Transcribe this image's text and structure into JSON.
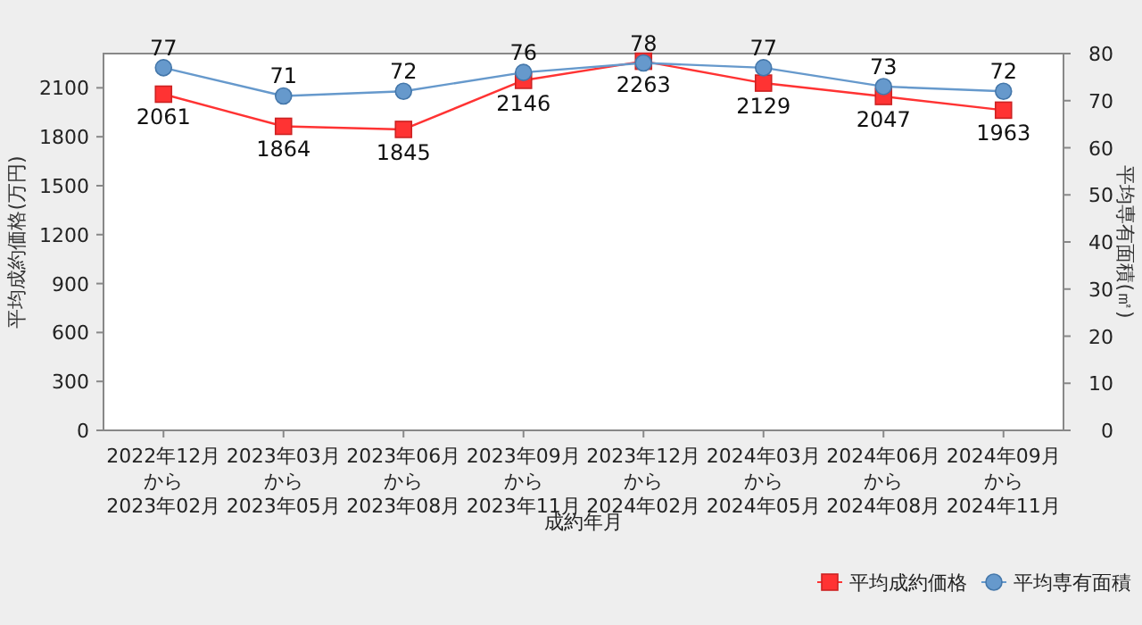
{
  "chart_data": {
    "type": "line",
    "xlabel": "成約年月",
    "ylabel": "平均成約価格(万円)",
    "y2label": "平均専有面積(㎡)",
    "categories": [
      "2022年12月から2023年02月",
      "2023年03月から2023年05月",
      "2023年06月から2023年08月",
      "2023年09月から2023年11月",
      "2023年12月から2024年02月",
      "2024年03月から2024年05月",
      "2024年06月から2024年08月",
      "2024年09月から2024年11月"
    ],
    "series": [
      {
        "name": "平均成約価格",
        "color": "#ff3333",
        "marker": "square",
        "values": [
          2061,
          1864,
          1845,
          2146,
          2263,
          2129,
          2047,
          1963
        ]
      },
      {
        "name": "平均専有面積",
        "color": "#6699cc",
        "marker": "circle",
        "axis": "y2",
        "values": [
          77,
          71,
          72,
          76,
          78,
          77,
          73,
          72
        ]
      }
    ],
    "ylim": [
      0,
      2310
    ],
    "yticks": [
      0,
      300,
      600,
      900,
      1200,
      1500,
      1800,
      2100
    ],
    "y2lim": [
      0,
      80
    ],
    "y2ticks": [
      0,
      10,
      20,
      30,
      40,
      50,
      60,
      70,
      80
    ],
    "data_labels": true,
    "grid": false,
    "legend": "bottom right"
  }
}
